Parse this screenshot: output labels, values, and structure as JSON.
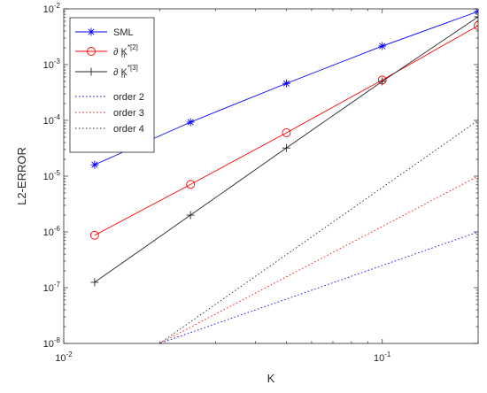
{
  "chart_data": {
    "type": "line",
    "xscale": "log",
    "yscale": "log",
    "xlim": [
      0.01,
      0.2
    ],
    "ylim": [
      1e-08,
      0.01
    ],
    "xlabel": "K",
    "ylabel": "L2-ERROR",
    "title": "",
    "grid": false,
    "legend_position": "top-left",
    "x_ticks": [
      {
        "value": 0.01,
        "base": "10",
        "exp": "-2"
      },
      {
        "value": 0.1,
        "base": "10",
        "exp": "-1"
      }
    ],
    "y_ticks": [
      {
        "value": 1e-08,
        "base": "10",
        "exp": "-8"
      },
      {
        "value": 1e-07,
        "base": "10",
        "exp": "-7"
      },
      {
        "value": 1e-06,
        "base": "10",
        "exp": "-6"
      },
      {
        "value": 1e-05,
        "base": "10",
        "exp": "-5"
      },
      {
        "value": 0.0001,
        "base": "10",
        "exp": "-4"
      },
      {
        "value": 0.001,
        "base": "10",
        "exp": "-3"
      },
      {
        "value": 0.01,
        "base": "10",
        "exp": "-2"
      }
    ],
    "series": [
      {
        "name": "SML",
        "legend": {
          "main": "SML",
          "sup": "",
          "sub": ""
        },
        "color": "#0000ff",
        "dash": "",
        "marker": "asterisk",
        "x": [
          0.0125,
          0.025,
          0.05,
          0.1,
          0.2
        ],
        "y": [
          1.6e-05,
          9.3e-05,
          0.00046,
          0.00215,
          0.009
        ]
      },
      {
        "name": "∂ K",
        "legend": {
          "main": "∂ K",
          "sup": "*[2]",
          "sub": "n"
        },
        "color": "#ff0000",
        "dash": "",
        "marker": "circle",
        "x": [
          0.0125,
          0.025,
          0.05,
          0.1,
          0.2
        ],
        "y": [
          8.7e-07,
          7.1e-06,
          6e-05,
          0.00053,
          0.005
        ]
      },
      {
        "name": "∂ K",
        "legend": {
          "main": "∂ K",
          "sup": "*[3]",
          "sub": "n"
        },
        "color": "#262626",
        "dash": "",
        "marker": "plus",
        "x": [
          0.0125,
          0.025,
          0.05,
          0.1,
          0.2
        ],
        "y": [
          1.25e-07,
          2e-06,
          3.2e-05,
          0.0005,
          0.0072
        ]
      },
      {
        "name": "order 2",
        "legend": {
          "main": "order 2",
          "sup": "",
          "sub": ""
        },
        "color": "#0000ff",
        "dash": "1.5,2.5",
        "marker": "none",
        "x": [
          0.01,
          0.2
        ],
        "y": [
          2.5e-09,
          1e-06
        ]
      },
      {
        "name": "order 3",
        "legend": {
          "main": "order 3",
          "sup": "",
          "sub": ""
        },
        "color": "#ff0000",
        "dash": "1.5,2.5",
        "marker": "none",
        "x": [
          0.01,
          0.2
        ],
        "y": [
          1.25e-09,
          1e-05
        ]
      },
      {
        "name": "order 4",
        "legend": {
          "main": "order 4",
          "sup": "",
          "sub": ""
        },
        "color": "#262626",
        "dash": "1.5,2.5",
        "marker": "none",
        "x": [
          0.01,
          0.2
        ],
        "y": [
          6.25e-10,
          0.0001
        ]
      }
    ]
  }
}
